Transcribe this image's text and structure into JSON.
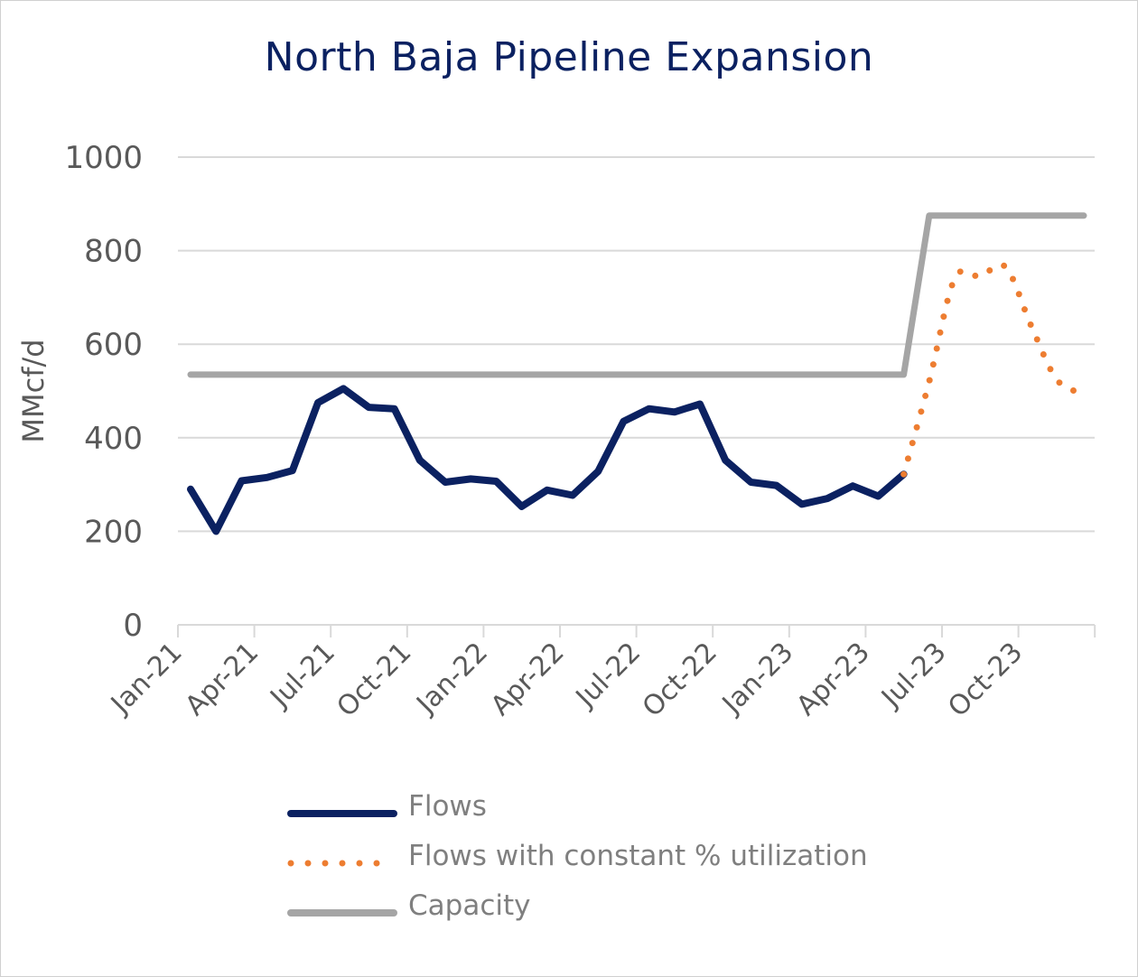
{
  "chart_data": {
    "type": "line",
    "title": "North Baja Pipeline Expansion",
    "ylabel": "MMcf/d",
    "xlabel": "",
    "ylim": [
      0,
      1000
    ],
    "yticks": [
      "0",
      "200",
      "400",
      "600",
      "800",
      "1000"
    ],
    "x": [
      "Jan-21",
      "Feb-21",
      "Mar-21",
      "Apr-21",
      "May-21",
      "Jun-21",
      "Jul-21",
      "Aug-21",
      "Sep-21",
      "Oct-21",
      "Nov-21",
      "Dec-21",
      "Jan-22",
      "Feb-22",
      "Mar-22",
      "Apr-22",
      "May-22",
      "Jun-22",
      "Jul-22",
      "Aug-22",
      "Sep-22",
      "Oct-22",
      "Nov-22",
      "Dec-22",
      "Jan-23",
      "Feb-23",
      "Mar-23",
      "Apr-23",
      "May-23",
      "Jun-23",
      "Jul-23",
      "Aug-23",
      "Sep-23",
      "Oct-23",
      "Nov-23",
      "Dec-23"
    ],
    "xtick_labels": [
      "Jan-21",
      "Apr-21",
      "Jul-21",
      "Oct-21",
      "Jan-22",
      "Apr-22",
      "Jul-22",
      "Oct-22",
      "Jan-23",
      "Apr-23",
      "Jul-23",
      "Oct-23"
    ],
    "grid": true,
    "legend_position": "bottom",
    "series": [
      {
        "name": "Flows",
        "color": "#0b2161",
        "style": "solid",
        "values": [
          290,
          200,
          308,
          315,
          330,
          475,
          505,
          465,
          462,
          352,
          305,
          312,
          307,
          253,
          288,
          277,
          328,
          435,
          462,
          455,
          472,
          352,
          305,
          298,
          258,
          270,
          297,
          275,
          322,
          null,
          null,
          null,
          null,
          null,
          null,
          null
        ]
      },
      {
        "name": "Flows with constant % utilization",
        "color": "#ed7d31",
        "style": "dotted",
        "values": [
          null,
          null,
          null,
          null,
          null,
          null,
          null,
          null,
          null,
          null,
          null,
          null,
          null,
          null,
          null,
          null,
          null,
          null,
          null,
          null,
          null,
          null,
          null,
          null,
          null,
          null,
          null,
          null,
          322,
          520,
          740,
          745,
          765,
          640,
          525,
          495
        ]
      },
      {
        "name": "Capacity",
        "color": "#a5a5a5",
        "style": "solid",
        "values": [
          535,
          535,
          535,
          535,
          535,
          535,
          535,
          535,
          535,
          535,
          535,
          535,
          535,
          535,
          535,
          535,
          535,
          535,
          535,
          535,
          535,
          535,
          535,
          535,
          535,
          535,
          535,
          535,
          535,
          875,
          875,
          875,
          875,
          875,
          875,
          875
        ]
      }
    ]
  }
}
